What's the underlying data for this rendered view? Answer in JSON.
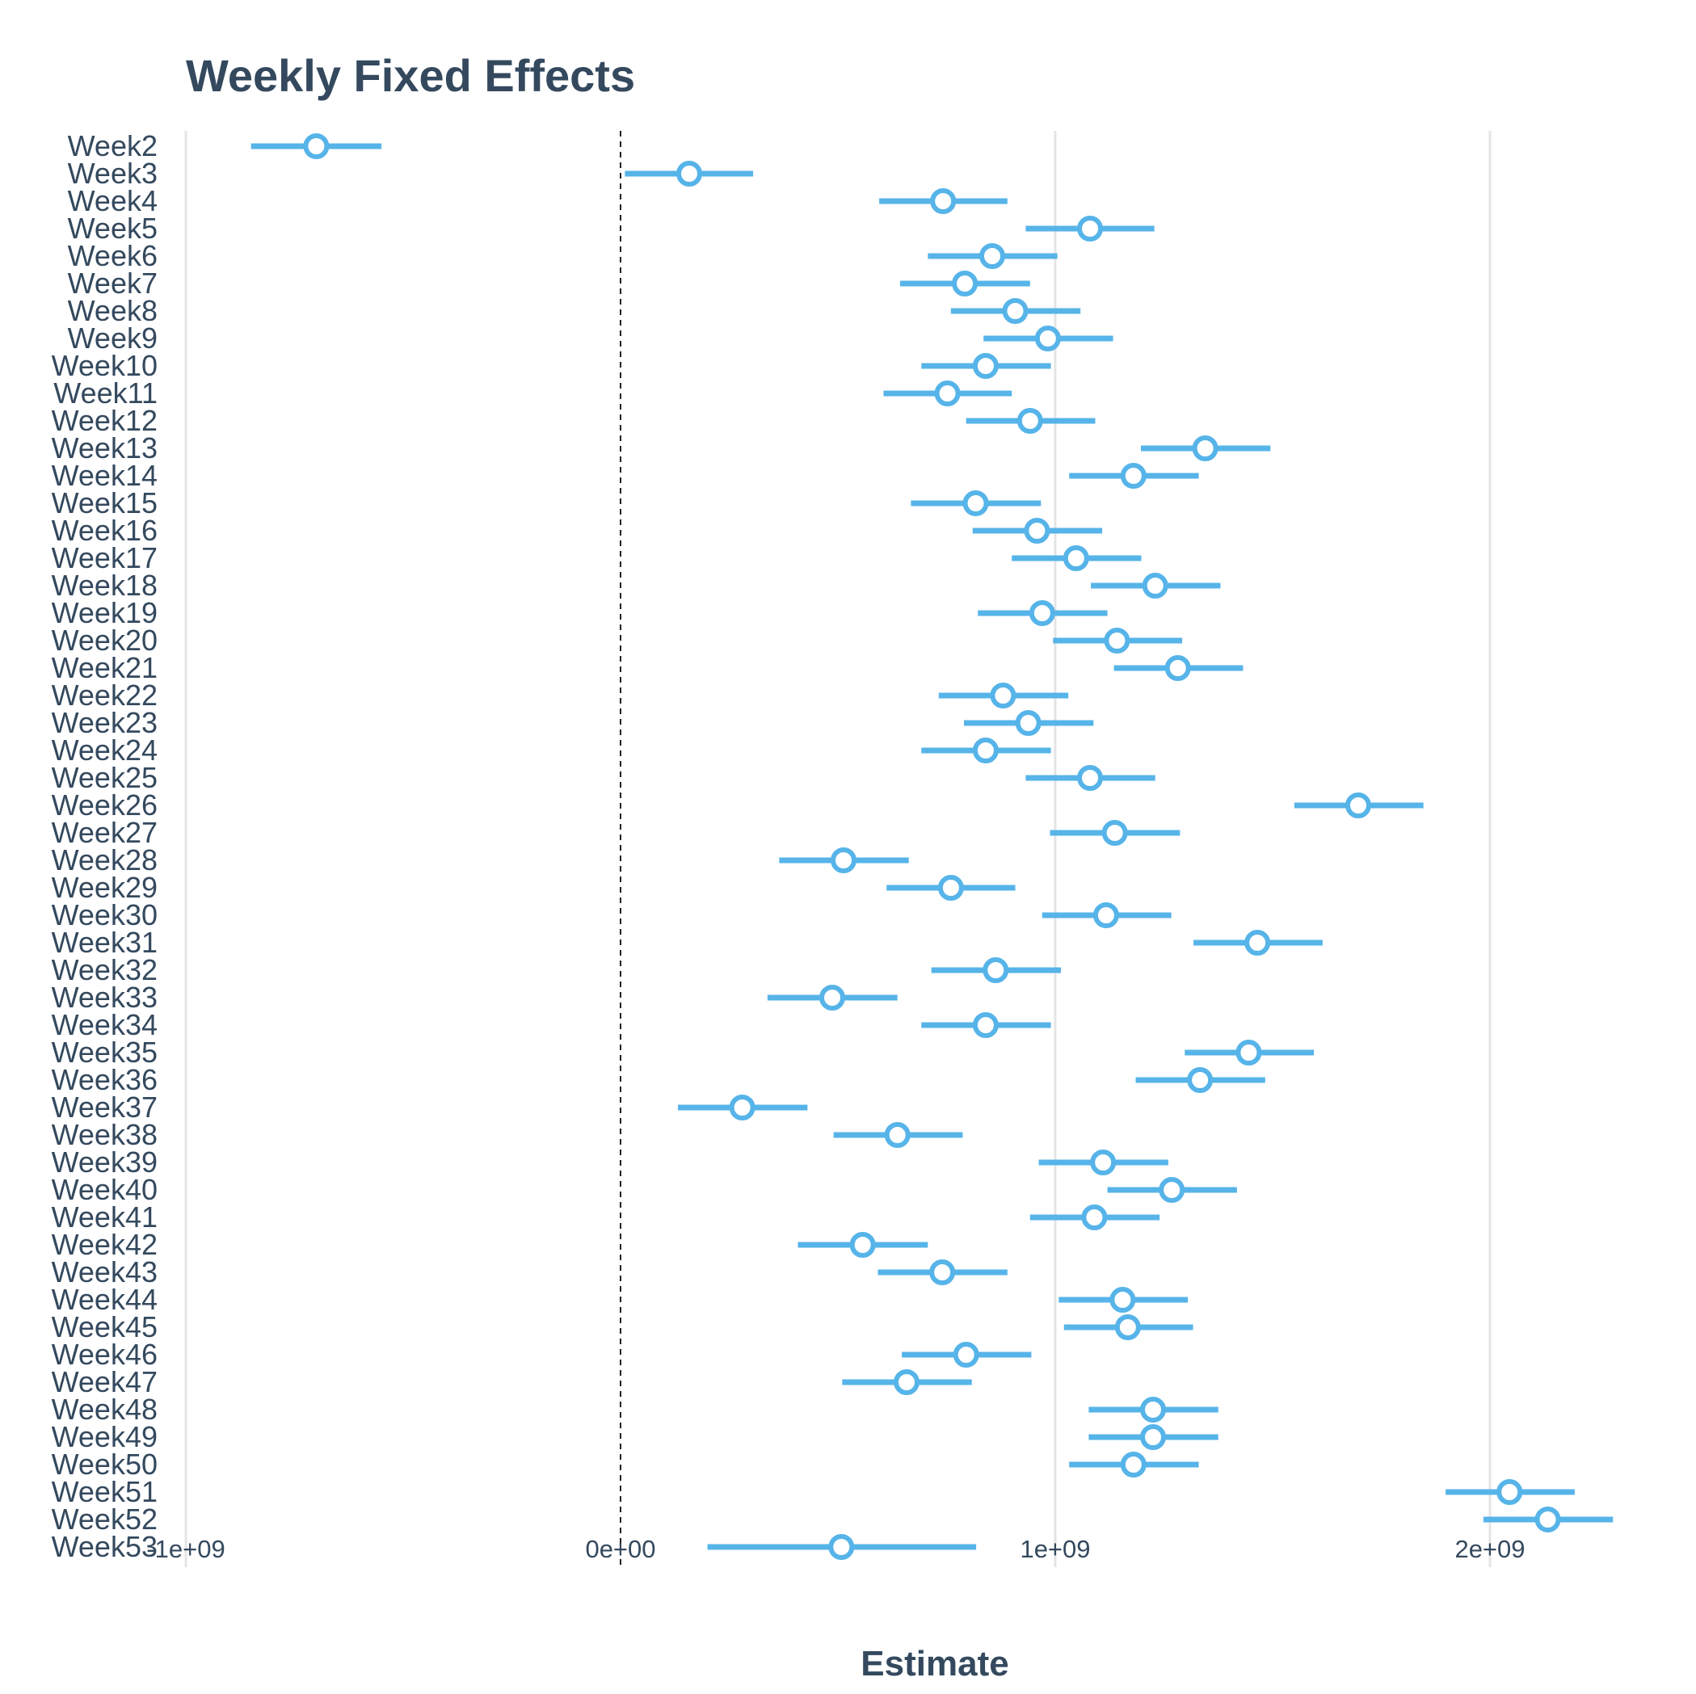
{
  "colors": {
    "series": "#56b4e9",
    "text": "#34495e",
    "grid": "#e4e4e4"
  },
  "chart_data": {
    "type": "scatter",
    "title": "Weekly Fixed Effects",
    "xlabel": "Estimate",
    "ylabel": "",
    "xlim": [
      -1000000000,
      2300000000
    ],
    "x_ticks": [
      -1000000000,
      0,
      1000000000,
      2000000000
    ],
    "x_tick_labels": [
      "-1e+09",
      "0e+00",
      "1e+09",
      "2e+09"
    ],
    "grid": true,
    "reference_line": 0,
    "points": [
      {
        "label": "Week2",
        "estimate": -700000000,
        "low": -850000000,
        "high": -550000000
      },
      {
        "label": "Week3",
        "estimate": 158000000,
        "low": 10000000,
        "high": 305000000
      },
      {
        "label": "Week4",
        "estimate": 742000000,
        "low": 595000000,
        "high": 890000000
      },
      {
        "label": "Week5",
        "estimate": 1080000000,
        "low": 932000000,
        "high": 1228000000
      },
      {
        "label": "Week6",
        "estimate": 855000000,
        "low": 707000000,
        "high": 1005000000
      },
      {
        "label": "Week7",
        "estimate": 792000000,
        "low": 643000000,
        "high": 942000000
      },
      {
        "label": "Week8",
        "estimate": 908000000,
        "low": 760000000,
        "high": 1058000000
      },
      {
        "label": "Week9",
        "estimate": 983000000,
        "low": 835000000,
        "high": 1133000000
      },
      {
        "label": "Week10",
        "estimate": 840000000,
        "low": 692000000,
        "high": 990000000
      },
      {
        "label": "Week11",
        "estimate": 752000000,
        "low": 605000000,
        "high": 900000000
      },
      {
        "label": "Week12",
        "estimate": 942000000,
        "low": 795000000,
        "high": 1092000000
      },
      {
        "label": "Week13",
        "estimate": 1345000000,
        "low": 1197000000,
        "high": 1495000000
      },
      {
        "label": "Week14",
        "estimate": 1180000000,
        "low": 1032000000,
        "high": 1330000000
      },
      {
        "label": "Week15",
        "estimate": 817000000,
        "low": 668000000,
        "high": 967000000
      },
      {
        "label": "Week16",
        "estimate": 958000000,
        "low": 810000000,
        "high": 1108000000
      },
      {
        "label": "Week17",
        "estimate": 1048000000,
        "low": 900000000,
        "high": 1198000000
      },
      {
        "label": "Week18",
        "estimate": 1230000000,
        "low": 1082000000,
        "high": 1380000000
      },
      {
        "label": "Week19",
        "estimate": 970000000,
        "low": 822000000,
        "high": 1120000000
      },
      {
        "label": "Week20",
        "estimate": 1142000000,
        "low": 995000000,
        "high": 1292000000
      },
      {
        "label": "Week21",
        "estimate": 1282000000,
        "low": 1135000000,
        "high": 1432000000
      },
      {
        "label": "Week22",
        "estimate": 880000000,
        "low": 732000000,
        "high": 1030000000
      },
      {
        "label": "Week23",
        "estimate": 938000000,
        "low": 790000000,
        "high": 1088000000
      },
      {
        "label": "Week24",
        "estimate": 840000000,
        "low": 692000000,
        "high": 990000000
      },
      {
        "label": "Week25",
        "estimate": 1080000000,
        "low": 932000000,
        "high": 1230000000
      },
      {
        "label": "Week26",
        "estimate": 1697000000,
        "low": 1550000000,
        "high": 1847000000
      },
      {
        "label": "Week27",
        "estimate": 1137000000,
        "low": 988000000,
        "high": 1287000000
      },
      {
        "label": "Week28",
        "estimate": 513000000,
        "low": 365000000,
        "high": 663000000
      },
      {
        "label": "Week29",
        "estimate": 760000000,
        "low": 612000000,
        "high": 908000000
      },
      {
        "label": "Week30",
        "estimate": 1117000000,
        "low": 970000000,
        "high": 1267000000
      },
      {
        "label": "Week31",
        "estimate": 1465000000,
        "low": 1318000000,
        "high": 1615000000
      },
      {
        "label": "Week32",
        "estimate": 863000000,
        "low": 715000000,
        "high": 1013000000
      },
      {
        "label": "Week33",
        "estimate": 487000000,
        "low": 338000000,
        "high": 637000000
      },
      {
        "label": "Week34",
        "estimate": 840000000,
        "low": 692000000,
        "high": 990000000
      },
      {
        "label": "Week35",
        "estimate": 1445000000,
        "low": 1298000000,
        "high": 1595000000
      },
      {
        "label": "Week36",
        "estimate": 1333000000,
        "low": 1185000000,
        "high": 1483000000
      },
      {
        "label": "Week37",
        "estimate": 280000000,
        "low": 132000000,
        "high": 430000000
      },
      {
        "label": "Week38",
        "estimate": 637000000,
        "low": 490000000,
        "high": 787000000
      },
      {
        "label": "Week39",
        "estimate": 1110000000,
        "low": 962000000,
        "high": 1260000000
      },
      {
        "label": "Week40",
        "estimate": 1268000000,
        "low": 1120000000,
        "high": 1418000000
      },
      {
        "label": "Week41",
        "estimate": 1090000000,
        "low": 942000000,
        "high": 1240000000
      },
      {
        "label": "Week42",
        "estimate": 557000000,
        "low": 408000000,
        "high": 707000000
      },
      {
        "label": "Week43",
        "estimate": 740000000,
        "low": 592000000,
        "high": 890000000
      },
      {
        "label": "Week44",
        "estimate": 1155000000,
        "low": 1008000000,
        "high": 1305000000
      },
      {
        "label": "Week45",
        "estimate": 1167000000,
        "low": 1020000000,
        "high": 1317000000
      },
      {
        "label": "Week46",
        "estimate": 795000000,
        "low": 647000000,
        "high": 945000000
      },
      {
        "label": "Week47",
        "estimate": 658000000,
        "low": 510000000,
        "high": 808000000
      },
      {
        "label": "Week48",
        "estimate": 1225000000,
        "low": 1077000000,
        "high": 1375000000
      },
      {
        "label": "Week49",
        "estimate": 1225000000,
        "low": 1077000000,
        "high": 1375000000
      },
      {
        "label": "Week50",
        "estimate": 1180000000,
        "low": 1032000000,
        "high": 1330000000
      },
      {
        "label": "Week51",
        "estimate": 2045000000,
        "low": 1898000000,
        "high": 2195000000
      },
      {
        "label": "Week52",
        "estimate": 2133000000,
        "low": 1985000000,
        "high": 2283000000
      },
      {
        "label": "Week53",
        "estimate": 508000000,
        "low": 200000000,
        "high": 818000000
      }
    ]
  }
}
